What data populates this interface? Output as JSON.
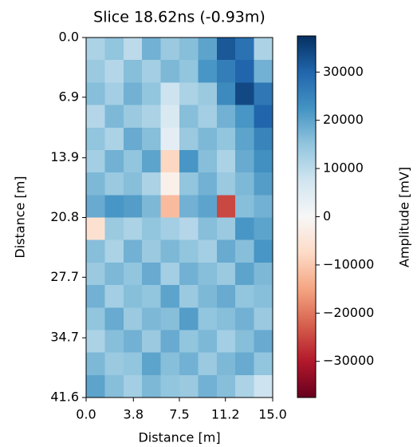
{
  "chart_data": {
    "type": "heatmap",
    "title": "Slice 18.62ns (-0.93m)",
    "xlabel": "Distance [m]",
    "ylabel": "Distance [m]",
    "colorbar_label": "Amplitude [mV]",
    "colormap": "RdBu",
    "xlim": [
      0,
      15
    ],
    "xticks": [
      {
        "value": 0,
        "label": "0.0"
      },
      3.8,
      7.5,
      11.2,
      {
        "value": 15,
        "label": "15.0"
      }
    ],
    "ylim": [
      41.6,
      0
    ],
    "yticks": [
      {
        "value": 0,
        "label": "0.0"
      },
      6.9,
      13.9,
      20.8,
      27.7,
      34.7,
      41.6
    ],
    "clim": [
      -37500,
      37500
    ],
    "cticks": [
      30000,
      20000,
      10000,
      0,
      {
        "value": -10000,
        "label": "−10000"
      },
      {
        "value": -20000,
        "label": "−20000"
      },
      {
        "value": -30000,
        "label": "−30000"
      }
    ],
    "z": [
      [
        12000,
        15000,
        10000,
        18000,
        14000,
        16000,
        20000,
        32000,
        28000,
        12000
      ],
      [
        14000,
        11000,
        16000,
        13000,
        17000,
        15000,
        22000,
        26000,
        30000,
        18000
      ],
      [
        16000,
        13000,
        18000,
        15000,
        8000,
        12000,
        14000,
        24000,
        34000,
        27000
      ],
      [
        11000,
        17000,
        14000,
        12000,
        6000,
        16000,
        13000,
        18000,
        22000,
        30000
      ],
      [
        15000,
        12000,
        19000,
        16000,
        4000,
        14000,
        17000,
        15000,
        20000,
        25000
      ],
      [
        13000,
        18000,
        15000,
        20000,
        -8000,
        22000,
        16000,
        12000,
        19000,
        23000
      ],
      [
        17000,
        14000,
        16000,
        12000,
        -2000,
        15000,
        18000,
        14000,
        17000,
        21000
      ],
      [
        19000,
        22000,
        21000,
        17000,
        -12000,
        18000,
        20000,
        -25000,
        16000,
        18000
      ],
      [
        -6000,
        14000,
        12000,
        15000,
        13000,
        11000,
        16000,
        14000,
        22000,
        20000
      ],
      [
        16000,
        12000,
        18000,
        14000,
        17000,
        15000,
        13000,
        19000,
        16000,
        22000
      ],
      [
        14000,
        17000,
        15000,
        19000,
        13000,
        18000,
        16000,
        14000,
        20000,
        17000
      ],
      [
        18000,
        13000,
        16000,
        15000,
        20000,
        14000,
        17000,
        19000,
        15000,
        16000
      ],
      [
        15000,
        19000,
        14000,
        17000,
        16000,
        21000,
        15000,
        16000,
        18000,
        14000
      ],
      [
        12000,
        16000,
        18000,
        14000,
        19000,
        15000,
        17000,
        13000,
        16000,
        19000
      ],
      [
        17000,
        14000,
        15000,
        20000,
        16000,
        18000,
        14000,
        17000,
        19000,
        15000
      ],
      [
        20000,
        16000,
        13000,
        17000,
        15000,
        14000,
        18000,
        16000,
        12000,
        8000
      ]
    ]
  }
}
